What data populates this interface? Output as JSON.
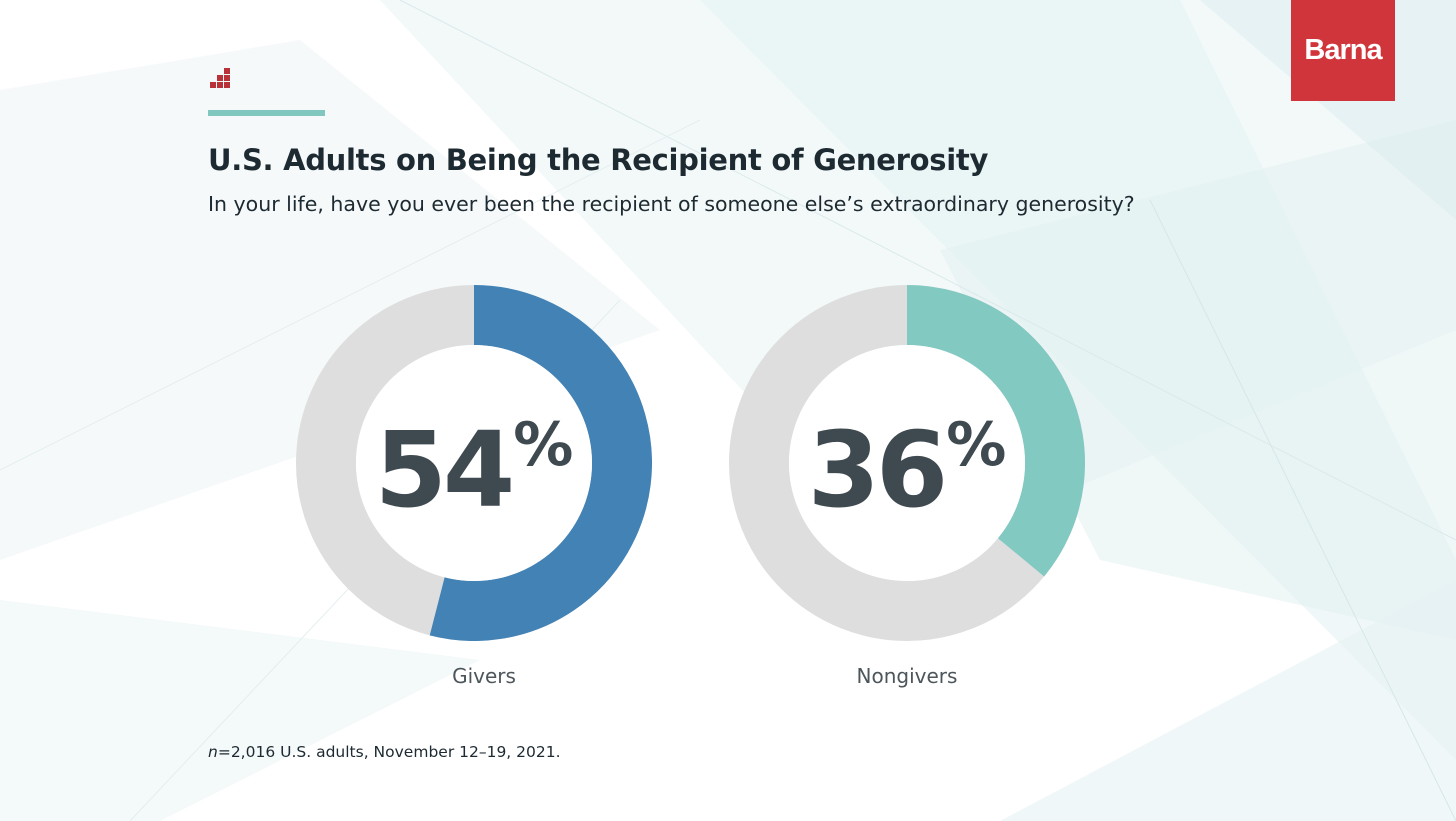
{
  "brand": {
    "logo_text": "Barna",
    "logo_color": "#d0353b",
    "mark_icon": "bar-steps-icon",
    "accent_color": "#7fc7bf"
  },
  "header": {
    "title": "U.S. Adults on Being the Recipient of Generosity",
    "subtitle": "In your life, have you ever been the recipient of someone else’s extraordinary generosity?"
  },
  "chart_data": {
    "type": "donut",
    "title": "U.S. Adults on Being the Recipient of Generosity",
    "subtitle": "In your life, have you ever been the recipient of someone else’s extraordinary generosity?",
    "unit": "%",
    "remainder_color": "#dedede",
    "series": [
      {
        "name": "Givers",
        "value": 54,
        "color": "#4282b5"
      },
      {
        "name": "Nongivers",
        "value": 36,
        "color": "#82c9c1"
      }
    ]
  },
  "footer": {
    "source_prefix": "n",
    "source_text": "=2,016 U.S. adults, November 12–19, 2021."
  }
}
